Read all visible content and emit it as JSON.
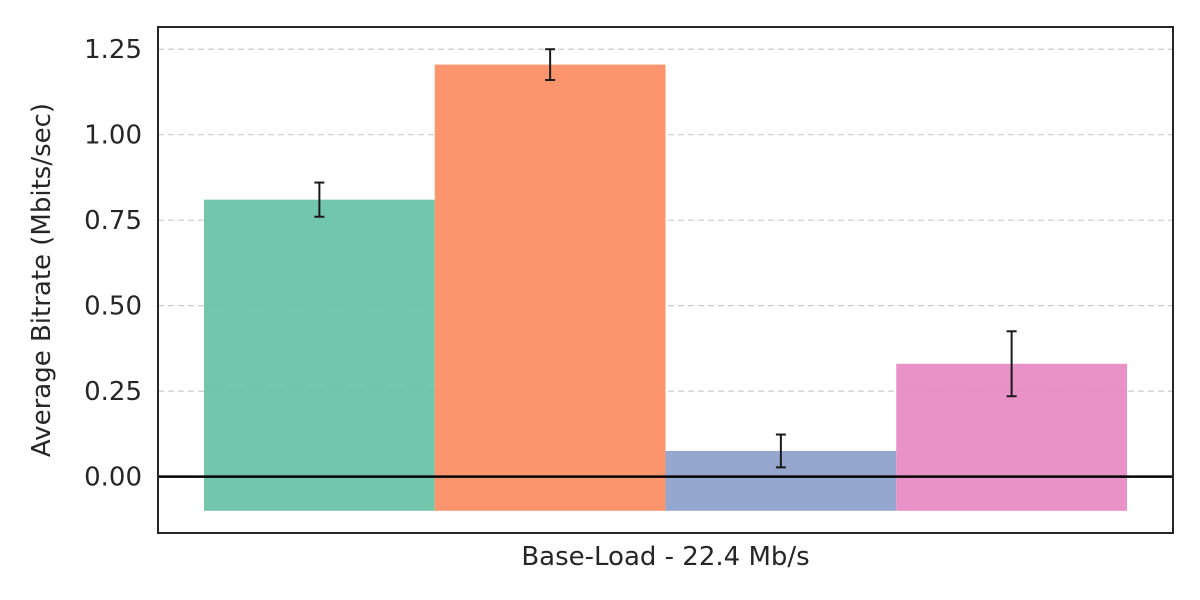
{
  "chart_data": {
    "type": "bar",
    "title": "",
    "xlabel": "Base-Load - 22.4 Mb/s",
    "ylabel": "Average Bitrate (Mbits/sec)",
    "ylim": [
      -0.165,
      1.315
    ],
    "yticks": [
      "0.00",
      "0.25",
      "0.50",
      "0.75",
      "1.00",
      "1.25"
    ],
    "grid": "y-dashed",
    "legend": "none",
    "baseline": 0,
    "bar_bottom": -0.1,
    "series": [
      {
        "value": 0.81,
        "error": 0.05,
        "color": "#66c2a5"
      },
      {
        "value": 1.205,
        "error": 0.045,
        "color": "#fc8d62"
      },
      {
        "value": 0.075,
        "error": 0.048,
        "color": "#8da0cb"
      },
      {
        "value": 0.33,
        "error": 0.095,
        "color": "#e78ac3"
      }
    ]
  }
}
